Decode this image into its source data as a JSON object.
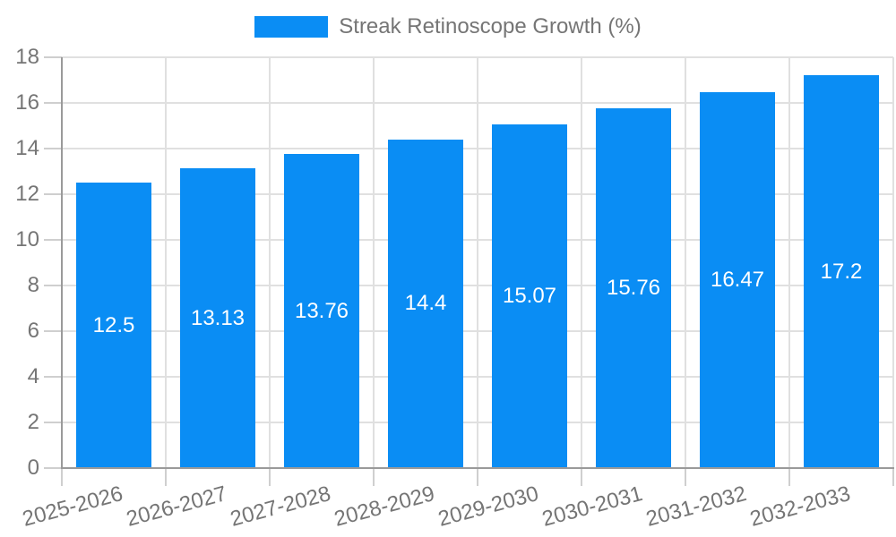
{
  "legend": {
    "label": "Streak Retinoscope Growth (%)"
  },
  "chart_data": {
    "type": "bar",
    "title": "",
    "xlabel": "",
    "ylabel": "",
    "categories": [
      "2025-2026",
      "2026-2027",
      "2027-2028",
      "2028-2029",
      "2029-2030",
      "2030-2031",
      "2031-2032",
      "2032-2033"
    ],
    "values": [
      12.5,
      13.13,
      13.76,
      14.4,
      15.07,
      15.76,
      16.47,
      17.2
    ],
    "series_name": "Streak Retinoscope Growth (%)",
    "ylim": [
      0,
      18
    ],
    "yticks": [
      0,
      2,
      4,
      6,
      8,
      10,
      12,
      14,
      16,
      18
    ],
    "grid": true,
    "legend_position": "top-center",
    "value_labels": "inside-center",
    "colors": {
      "bar": "#0a8df4",
      "value_label_text": "#ffffff",
      "axis_text": "#757575",
      "grid_line": "#e0e0e0",
      "tick_line": "#cfcfcf",
      "axis_line": "#9a9a9a",
      "background": "#ffffff"
    }
  }
}
